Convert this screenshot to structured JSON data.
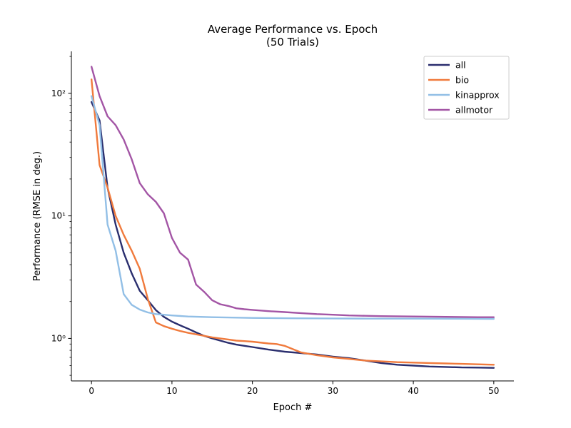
{
  "chart_data": {
    "type": "line",
    "title": "Average Performance vs. Epoch",
    "subtitle": "(50 Trials)",
    "xlabel": "Epoch #",
    "ylabel": "Performance (RMSE in deg.)",
    "xlim": [
      -2.5,
      52.5
    ],
    "ylim": [
      0.45,
      220
    ],
    "yscale": "log",
    "grid": false,
    "legend_position": "top-right",
    "x_ticks": [
      0,
      10,
      20,
      30,
      40,
      50
    ],
    "x_tick_labels": [
      "0",
      "10",
      "20",
      "30",
      "40",
      "50"
    ],
    "y_ticks": [
      1,
      10,
      100
    ],
    "y_tick_labels": [
      "10⁰",
      "10¹",
      "10²"
    ],
    "series": [
      {
        "name": "all",
        "color": "#2a2e6e",
        "x": [
          0,
          1,
          2,
          3,
          4,
          5,
          6,
          7,
          8,
          9,
          10,
          11,
          12,
          13,
          14,
          15,
          16,
          17,
          18,
          19,
          20,
          22,
          24,
          26,
          28,
          30,
          32,
          34,
          36,
          38,
          40,
          42,
          44,
          46,
          48,
          50
        ],
        "y": [
          85,
          60,
          17,
          8.5,
          5,
          3.4,
          2.45,
          2.05,
          1.7,
          1.5,
          1.37,
          1.28,
          1.2,
          1.12,
          1.05,
          1.0,
          0.96,
          0.92,
          0.89,
          0.87,
          0.85,
          0.81,
          0.78,
          0.76,
          0.74,
          0.71,
          0.69,
          0.66,
          0.63,
          0.61,
          0.6,
          0.59,
          0.585,
          0.58,
          0.578,
          0.575
        ]
      },
      {
        "name": "bio",
        "color": "#f07a3c",
        "x": [
          0,
          1,
          2,
          3,
          4,
          5,
          6,
          7,
          8,
          9,
          10,
          11,
          12,
          13,
          14,
          15,
          16,
          17,
          18,
          19,
          20,
          22,
          23,
          24,
          26,
          28,
          30,
          32,
          34,
          36,
          38,
          40,
          42,
          44,
          46,
          48,
          50
        ],
        "y": [
          130,
          26,
          17,
          10,
          7,
          5.2,
          3.7,
          2.1,
          1.35,
          1.26,
          1.2,
          1.15,
          1.11,
          1.08,
          1.05,
          1.02,
          1.0,
          0.98,
          0.96,
          0.95,
          0.94,
          0.91,
          0.9,
          0.87,
          0.77,
          0.73,
          0.7,
          0.68,
          0.66,
          0.65,
          0.64,
          0.635,
          0.63,
          0.625,
          0.62,
          0.615,
          0.61
        ]
      },
      {
        "name": "kinapprox",
        "color": "#92bfe6",
        "x": [
          0,
          1,
          2,
          3,
          4,
          5,
          6,
          7,
          8,
          9,
          10,
          12,
          15,
          20,
          25,
          30,
          35,
          40,
          45,
          50
        ],
        "y": [
          95,
          55,
          8.5,
          5.2,
          2.3,
          1.88,
          1.72,
          1.63,
          1.58,
          1.56,
          1.54,
          1.51,
          1.49,
          1.47,
          1.46,
          1.455,
          1.45,
          1.45,
          1.448,
          1.445
        ]
      },
      {
        "name": "allmotor",
        "color": "#a355a5",
        "x": [
          0,
          1,
          2,
          3,
          4,
          5,
          6,
          7,
          8,
          9,
          10,
          11,
          12,
          13,
          14,
          15,
          16,
          17,
          18,
          19,
          20,
          22,
          24,
          26,
          28,
          30,
          32,
          34,
          36,
          38,
          40,
          42,
          44,
          46,
          48,
          50
        ],
        "y": [
          165,
          95,
          65,
          55,
          42,
          29,
          18.5,
          15,
          13,
          10.5,
          6.6,
          5,
          4.4,
          2.75,
          2.4,
          2.05,
          1.9,
          1.84,
          1.76,
          1.73,
          1.71,
          1.67,
          1.64,
          1.61,
          1.58,
          1.56,
          1.54,
          1.53,
          1.52,
          1.515,
          1.51,
          1.505,
          1.5,
          1.495,
          1.49,
          1.49
        ]
      }
    ]
  }
}
